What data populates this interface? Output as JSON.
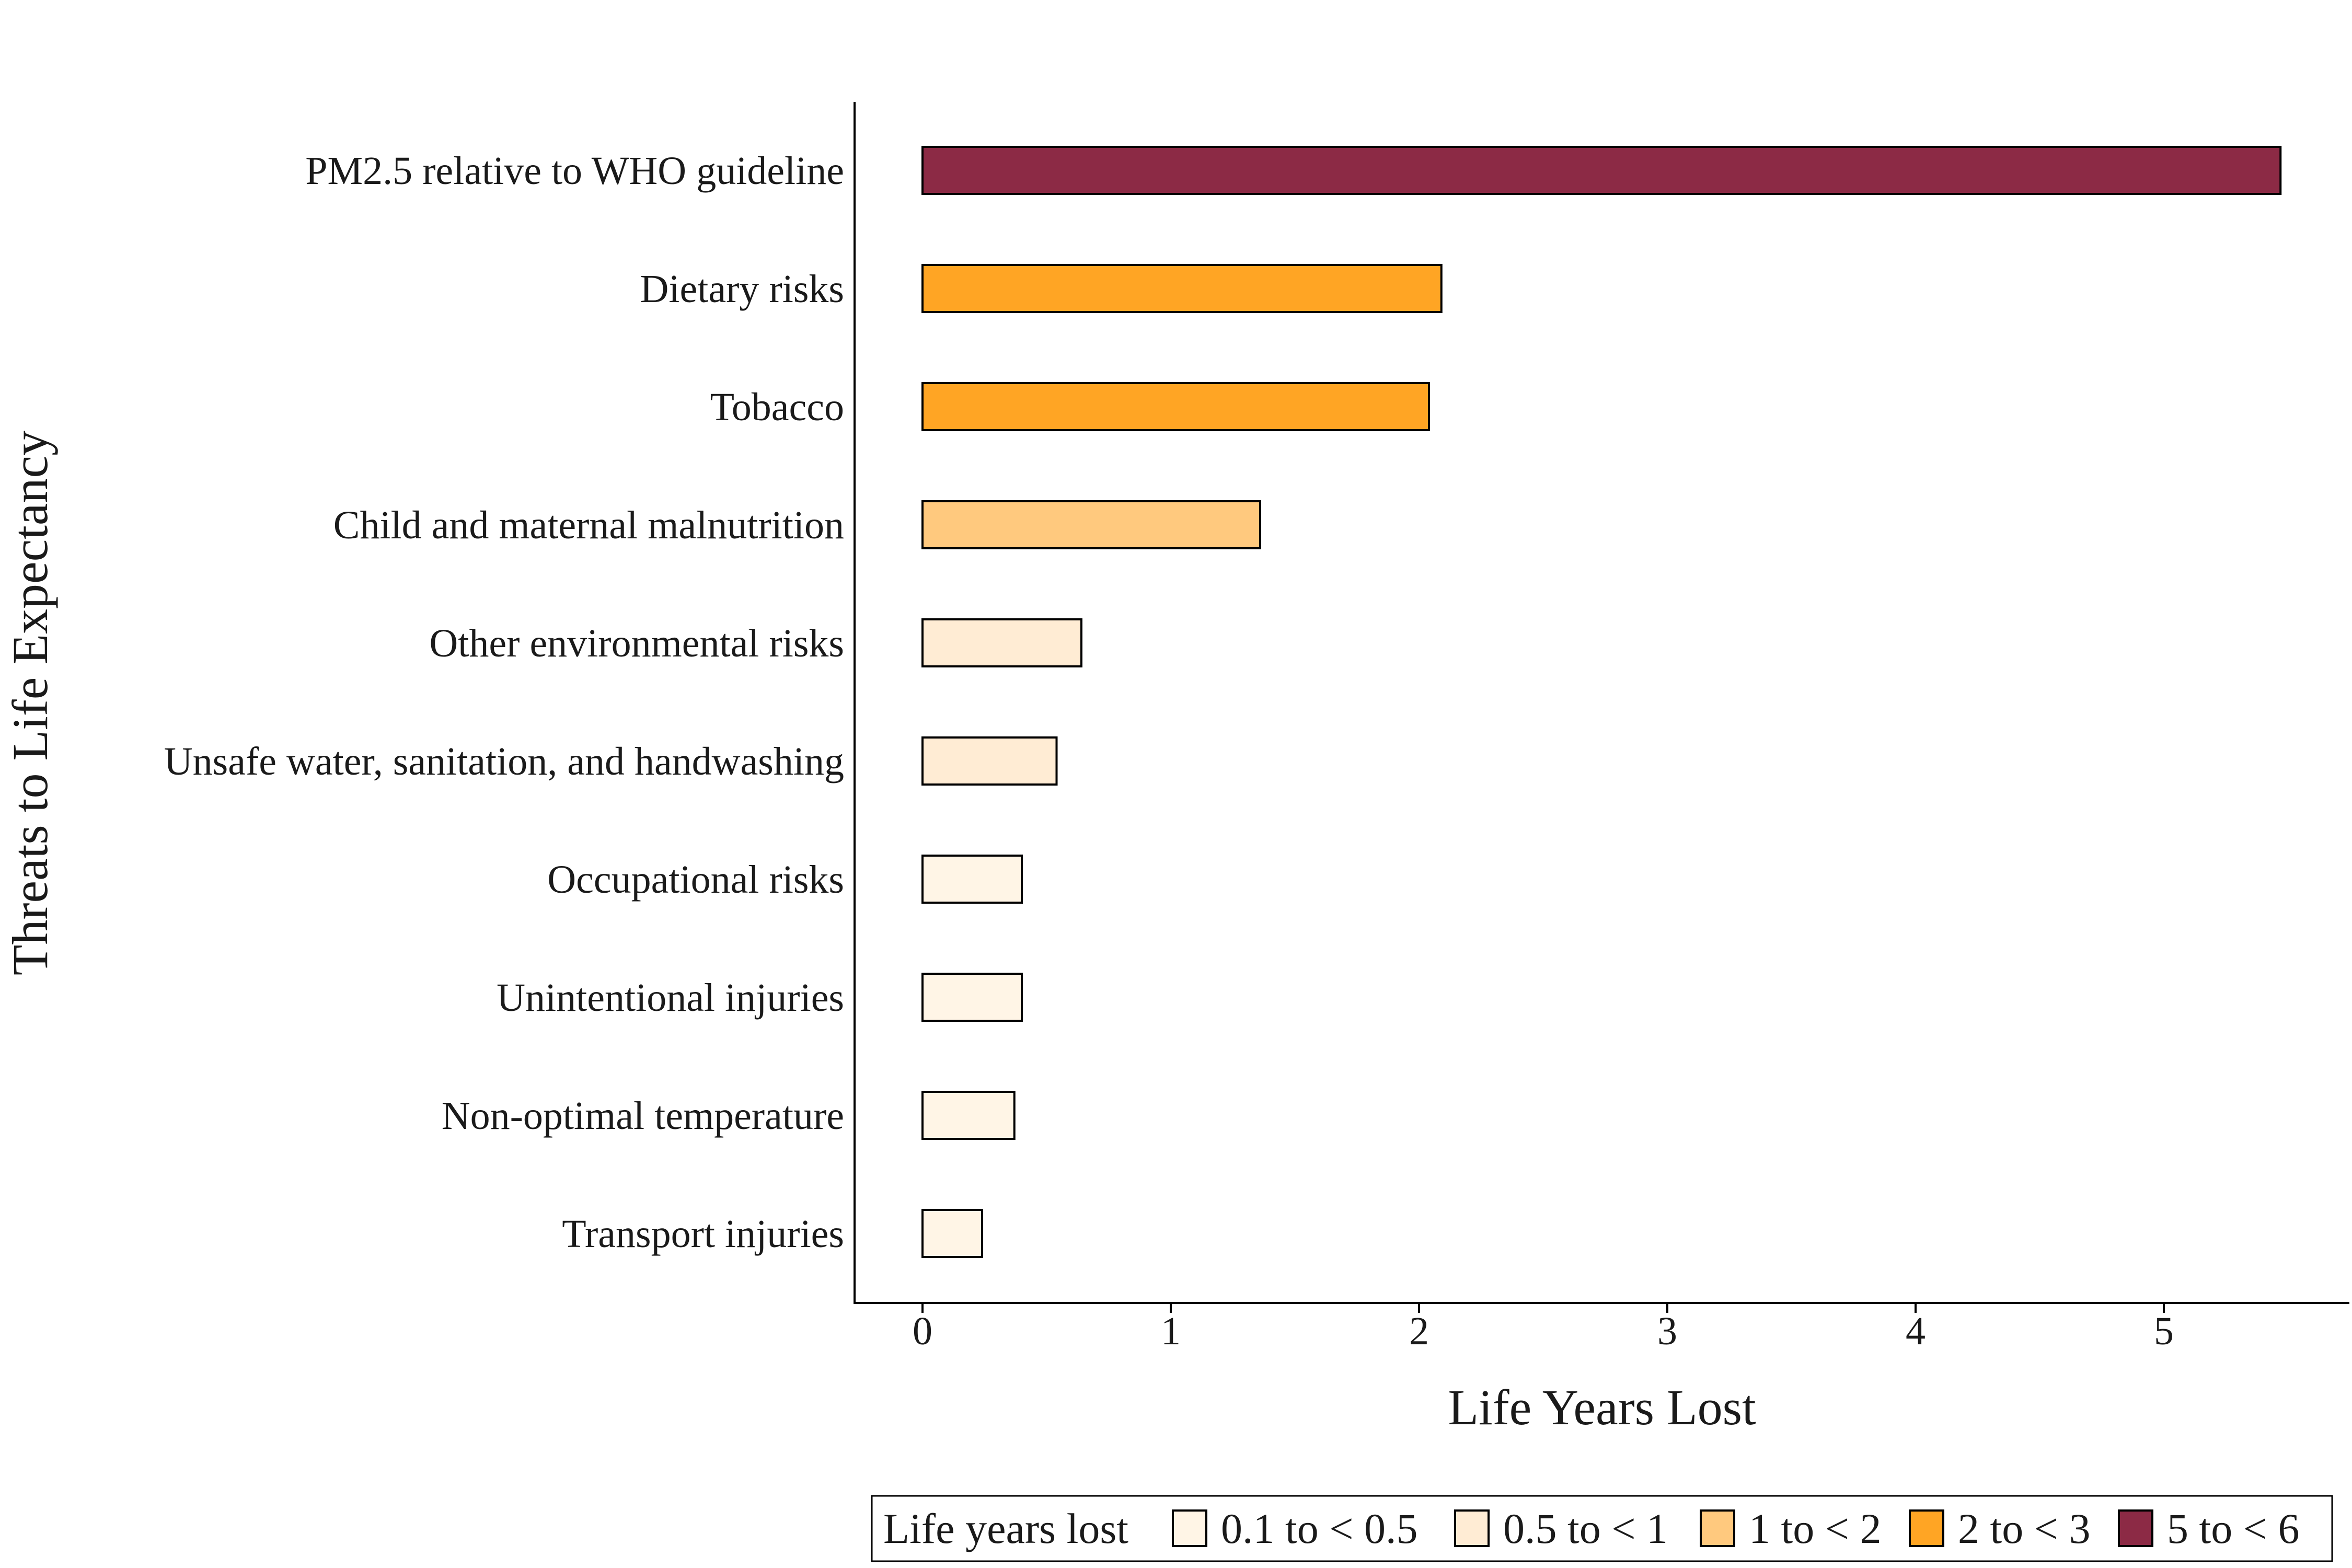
{
  "chart_data": {
    "type": "bar",
    "orientation": "horizontal",
    "xlabel": "Life Years Lost",
    "ylabel": "Threats to Life Expectancy",
    "xlim": [
      -0.27,
      5.75
    ],
    "xticks": [
      "0",
      "1",
      "2",
      "3",
      "4",
      "5"
    ],
    "grid": false,
    "categories": [
      "PM2.5 relative to WHO guideline",
      "Dietary risks",
      "Tobacco",
      "Child and maternal malnutrition",
      "Other environmental risks",
      "Unsafe water, sanitation, and handwashing",
      "Occupational risks",
      "Unintentional injuries",
      "Non-optimal temperature",
      "Transport injuries"
    ],
    "values": [
      5.47,
      2.09,
      2.04,
      1.36,
      0.64,
      0.54,
      0.4,
      0.4,
      0.37,
      0.24
    ],
    "bins": [
      "5 to < 6",
      "2 to < 3",
      "2 to < 3",
      "1 to < 2",
      "0.5 to < 1",
      "0.5 to < 1",
      "0.1 to < 0.5",
      "0.1 to < 0.5",
      "0.1 to < 0.5",
      "0.1 to < 0.5"
    ],
    "legend": {
      "title": "Life years lost",
      "position": "bottom",
      "entries": [
        {
          "label": "0.1 to < 0.5",
          "color": "#fff5e6"
        },
        {
          "label": "0.5 to < 1",
          "color": "#ffecd4"
        },
        {
          "label": "1 to < 2",
          "color": "#ffc97e"
        },
        {
          "label": "2 to < 3",
          "color": "#ffa524"
        },
        {
          "label": "5 to < 6",
          "color": "#8c2a45"
        }
      ]
    }
  }
}
